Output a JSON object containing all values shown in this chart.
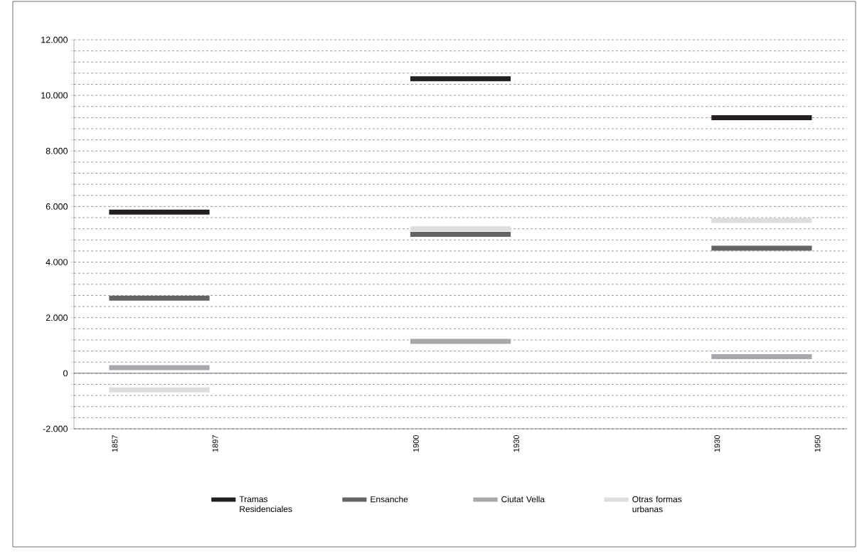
{
  "chart_data": {
    "type": "line",
    "categories": [
      "1857",
      "1897",
      null,
      "1900",
      "1930",
      null,
      "1930",
      "1950"
    ],
    "series": [
      {
        "name": "Tramas Residenciales",
        "color": "#231f20",
        "values": [
          5800,
          5800,
          null,
          10600,
          10600,
          null,
          9200,
          9200
        ]
      },
      {
        "name": "Ensanche",
        "color": "#646464",
        "values": [
          2700,
          2700,
          null,
          5000,
          5000,
          null,
          4500,
          4500
        ]
      },
      {
        "name": "Ciutat Vella",
        "color": "#a7a8ab",
        "values": [
          200,
          200,
          null,
          1150,
          1150,
          null,
          600,
          600
        ]
      },
      {
        "name": "Otras formas urbanas",
        "color": "#dcddde",
        "values": [
          -600,
          -600,
          null,
          5200,
          5200,
          null,
          5500,
          5500
        ]
      }
    ],
    "ylim": [
      -2000,
      12000
    ],
    "yticks": [
      {
        "value": -2000,
        "label": "-2.000"
      },
      {
        "value": -1600,
        "label": null
      },
      {
        "value": -1200,
        "label": null
      },
      {
        "value": -800,
        "label": null
      },
      {
        "value": -400,
        "label": null
      },
      0,
      {
        "value": 400,
        "label": null
      },
      {
        "value": 800,
        "label": null
      },
      {
        "value": 1200,
        "label": null
      },
      {
        "value": 1600,
        "label": null
      },
      {
        "value": 2000,
        "label": "2.000"
      },
      {
        "value": 2400,
        "label": null
      },
      {
        "value": 2800,
        "label": null
      },
      {
        "value": 3200,
        "label": null
      },
      {
        "value": 3600,
        "label": null
      },
      {
        "value": 4000,
        "label": "4.000"
      },
      {
        "value": 4400,
        "label": null
      },
      {
        "value": 4800,
        "label": null
      },
      {
        "value": 5200,
        "label": null
      },
      {
        "value": 5600,
        "label": null
      },
      {
        "value": 6000,
        "label": "6.000"
      },
      {
        "value": 6400,
        "label": null
      },
      {
        "value": 6800,
        "label": null
      },
      {
        "value": 7200,
        "label": null
      },
      {
        "value": 7600,
        "label": null
      },
      {
        "value": 8000,
        "label": "8.000"
      },
      {
        "value": 8400,
        "label": null
      },
      {
        "value": 8800,
        "label": null
      },
      {
        "value": 9200,
        "label": null
      },
      {
        "value": 9600,
        "label": null
      },
      {
        "value": 10000,
        "label": "10.000"
      },
      {
        "value": 10400,
        "label": null
      },
      {
        "value": 10800,
        "label": null
      },
      {
        "value": 11200,
        "label": null
      },
      {
        "value": 11600,
        "label": null
      },
      {
        "value": 12000,
        "label": "12.000"
      }
    ],
    "grid": "y",
    "legend": "bottom",
    "marker": "none",
    "line_style": "solid"
  }
}
